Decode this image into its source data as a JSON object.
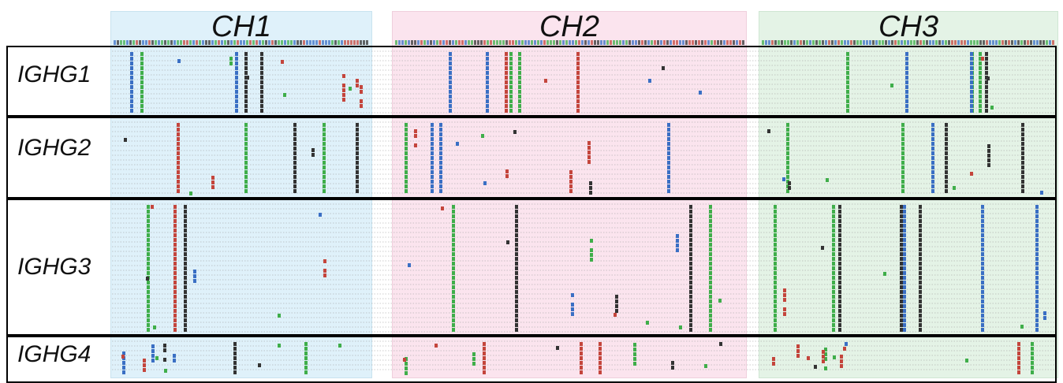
{
  "regions": [
    {
      "label": "CH1",
      "color": "#dff1fa"
    },
    {
      "label": "CH2",
      "color": "#fbe4ee"
    },
    {
      "label": "CH3",
      "color": "#e4f3e6"
    }
  ],
  "genes": [
    {
      "label": "IGHG1"
    },
    {
      "label": "IGHG2"
    },
    {
      "label": "IGHG3"
    },
    {
      "label": "IGHG4"
    }
  ],
  "base_colors": {
    "A": "#3fae4a",
    "C": "#3a6fc4",
    "G": "#333333",
    "T": "#c4453c"
  },
  "track_color": "#9a9a9a"
}
